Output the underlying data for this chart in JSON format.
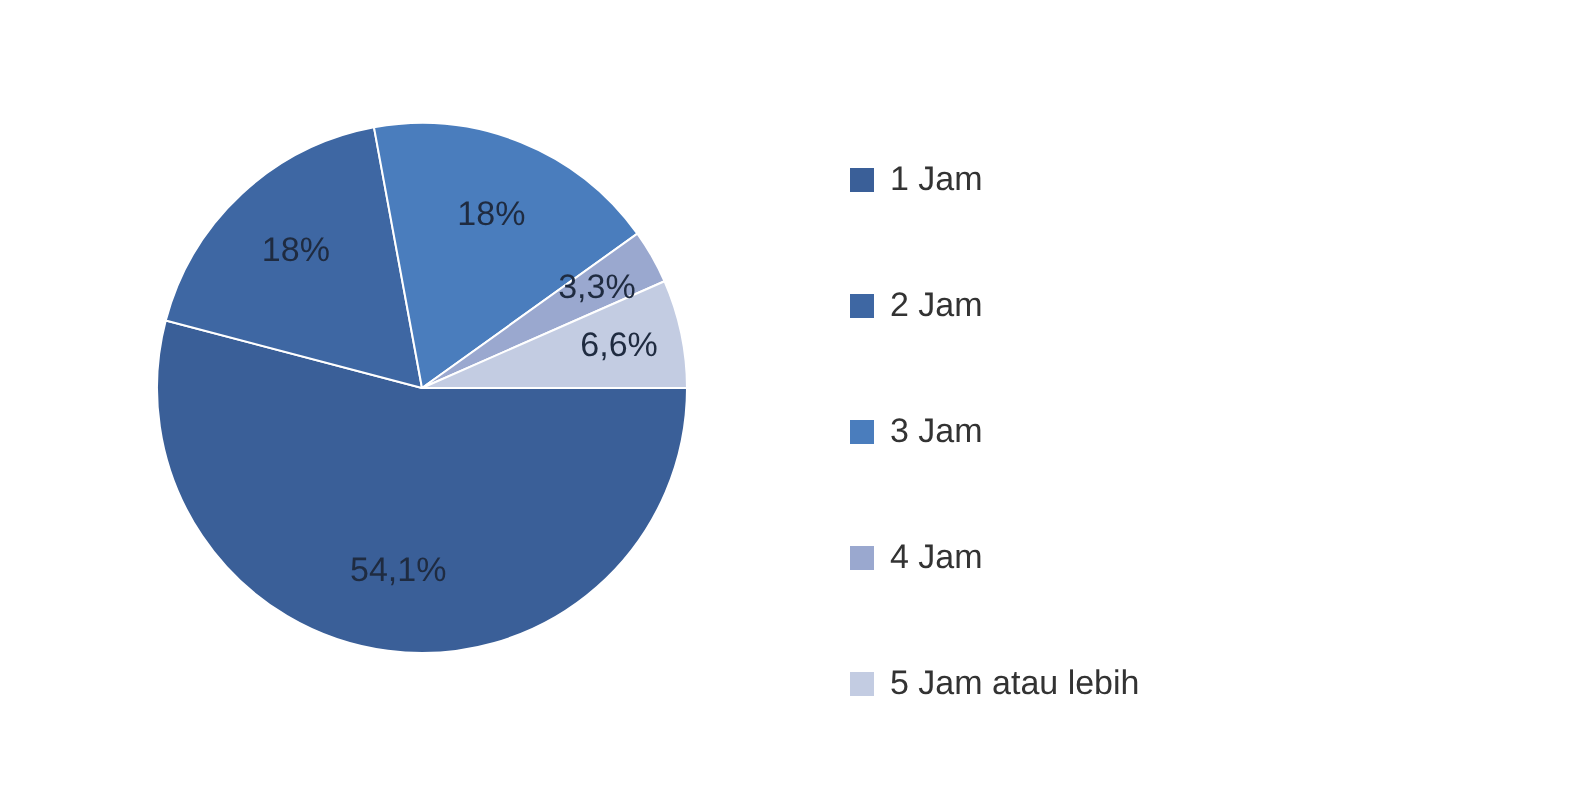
{
  "chart_data": {
    "type": "pie",
    "categories": [
      "1 Jam",
      "2 Jam",
      "3 Jam",
      "4 Jam",
      "5 Jam atau lebih"
    ],
    "values": [
      54.1,
      18,
      18,
      3.3,
      6.6
    ],
    "value_labels": [
      "54,1%",
      "18%",
      "18%",
      "3,3%",
      "6,6%"
    ],
    "colors": [
      "#3a5f98",
      "#3e67a3",
      "#4a7dbd",
      "#9aa8cf",
      "#c3cce2"
    ],
    "legend": "right"
  }
}
